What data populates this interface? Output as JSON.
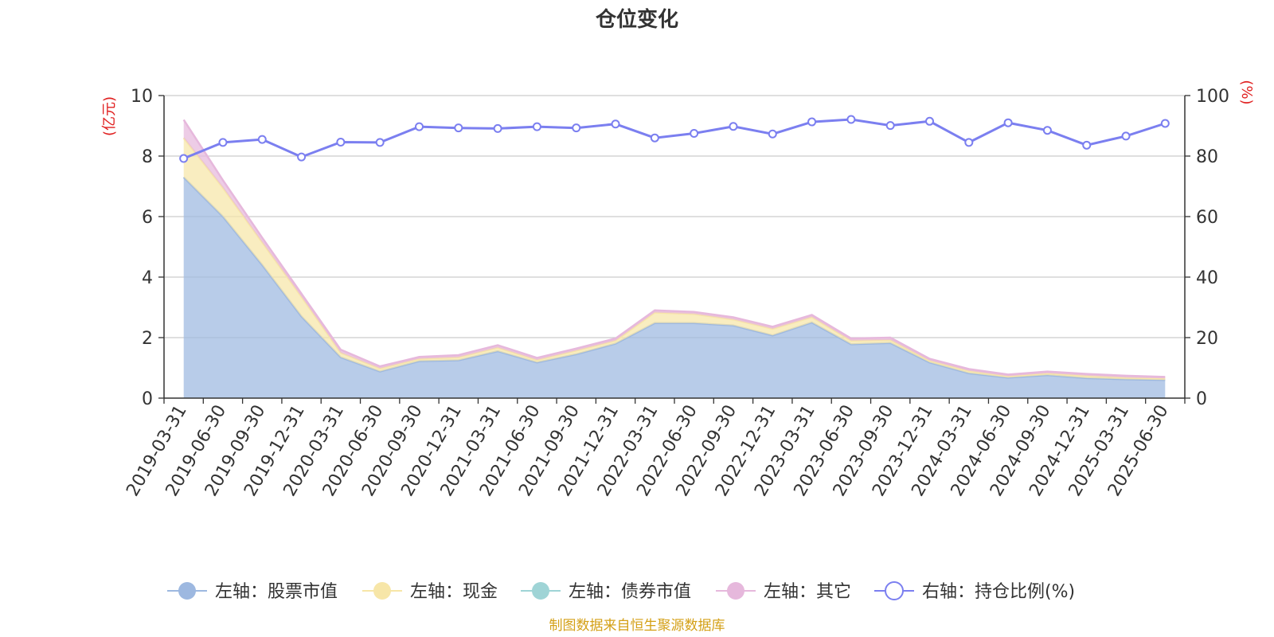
{
  "chart_data": {
    "type": "area",
    "title": "仓位变化",
    "y_left_unit": "(亿元)",
    "y_right_unit": "(%)",
    "ylim_left": [
      0,
      10
    ],
    "ylim_right": [
      0,
      100
    ],
    "yticks_left": [
      "0",
      "2",
      "4",
      "6",
      "8",
      "10"
    ],
    "yticks_right": [
      "0",
      "20",
      "40",
      "60",
      "80",
      "100"
    ],
    "grid": true,
    "legend_position": "bottom",
    "categories": [
      "2019-03-31",
      "2019-06-30",
      "2019-09-30",
      "2019-12-31",
      "2020-03-31",
      "2020-06-30",
      "2020-09-30",
      "2020-12-31",
      "2021-03-31",
      "2021-06-30",
      "2021-09-30",
      "2021-12-31",
      "2022-03-31",
      "2022-06-30",
      "2022-09-30",
      "2022-12-31",
      "2023-03-31",
      "2023-06-30",
      "2023-09-30",
      "2023-12-31",
      "2024-03-31",
      "2024-06-30",
      "2024-09-30",
      "2024-12-31",
      "2025-03-31",
      "2025-06-30"
    ],
    "series": [
      {
        "name": "左轴：股票市值",
        "axis": "left",
        "stack": true,
        "color": "#9db8e0",
        "values": [
          7.3,
          6.0,
          4.4,
          2.7,
          1.35,
          0.88,
          1.22,
          1.25,
          1.55,
          1.18,
          1.45,
          1.8,
          2.48,
          2.48,
          2.4,
          2.07,
          2.5,
          1.78,
          1.82,
          1.18,
          0.82,
          0.68,
          0.76,
          0.66,
          0.62,
          0.6
        ]
      },
      {
        "name": "左轴：现金",
        "axis": "left",
        "stack": true,
        "color": "#f7e6a8",
        "values": [
          1.3,
          0.95,
          0.75,
          0.65,
          0.15,
          0.1,
          0.08,
          0.1,
          0.12,
          0.08,
          0.12,
          0.1,
          0.35,
          0.3,
          0.2,
          0.22,
          0.18,
          0.12,
          0.1,
          0.06,
          0.08,
          0.04,
          0.06,
          0.08,
          0.06,
          0.05
        ]
      },
      {
        "name": "左轴：债券市值",
        "axis": "left",
        "stack": true,
        "color": "#9fd4d6",
        "values": [
          0,
          0,
          0,
          0,
          0,
          0,
          0,
          0,
          0,
          0,
          0,
          0,
          0,
          0,
          0,
          0,
          0,
          0,
          0,
          0,
          0,
          0,
          0,
          0,
          0,
          0
        ]
      },
      {
        "name": "左轴：其它",
        "axis": "left",
        "stack": true,
        "color": "#e6b8dc",
        "values": [
          0.6,
          0.25,
          0.15,
          0.1,
          0.1,
          0.07,
          0.06,
          0.07,
          0.08,
          0.07,
          0.07,
          0.07,
          0.07,
          0.07,
          0.07,
          0.07,
          0.07,
          0.07,
          0.08,
          0.06,
          0.06,
          0.06,
          0.06,
          0.06,
          0.06,
          0.05
        ]
      },
      {
        "name": "右轴：持仓比例(%)",
        "axis": "right",
        "stack": false,
        "color": "#7b7ff0",
        "values": [
          79.2,
          84.5,
          85.5,
          79.7,
          84.6,
          84.5,
          89.7,
          89.3,
          89.1,
          89.7,
          89.3,
          90.6,
          86.0,
          87.5,
          89.8,
          87.3,
          91.3,
          92.1,
          90.1,
          91.5,
          84.5,
          91.0,
          88.5,
          83.6,
          86.6,
          90.8
        ]
      }
    ],
    "source_note": "制图数据来自恒生聚源数据库"
  }
}
